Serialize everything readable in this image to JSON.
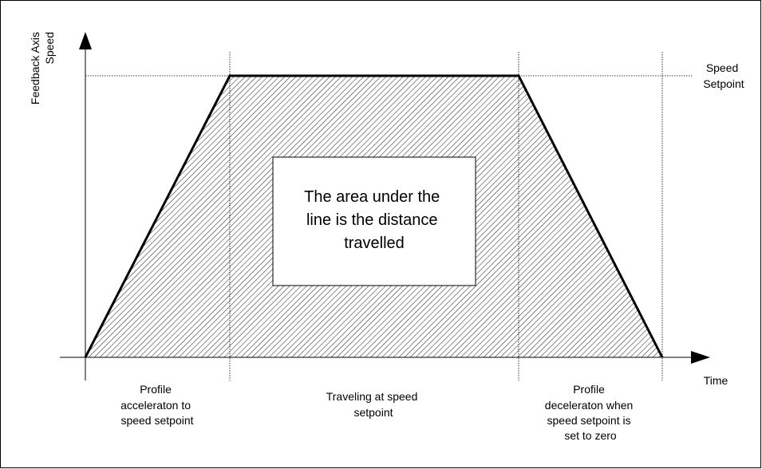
{
  "y_axis_label": [
    "Feedback Axis",
    "Speed"
  ],
  "x_axis_label": "Time",
  "setpoint_label": [
    "Speed",
    "Setpoint"
  ],
  "center_note": [
    "The area under the",
    "line is the distance",
    "travelled"
  ],
  "phases": [
    {
      "lines": [
        "Profile",
        "acceleraton to",
        "speed setpoint"
      ]
    },
    {
      "lines": [
        "Traveling at speed",
        "setpoint"
      ]
    },
    {
      "lines": [
        "Profile",
        "deceleraton when",
        "speed setpoint is",
        "set to zero"
      ]
    }
  ]
}
